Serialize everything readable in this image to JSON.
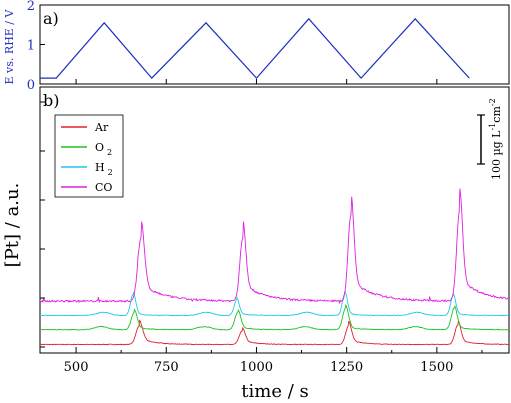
{
  "chart_data": [
    {
      "type": "line",
      "panel_label": "a)",
      "ylabel": "E vs. RHE / V",
      "ylim": [
        0,
        2
      ],
      "yticks": [
        "0",
        "1",
        "2"
      ],
      "xlim": [
        400,
        1700
      ],
      "color": "#1f2fbf",
      "series": [
        {
          "x": [
            400,
            445,
            578,
            710,
            860,
            1000,
            1145,
            1290,
            1440,
            1590
          ],
          "y": [
            0.15,
            0.15,
            1.55,
            0.15,
            1.55,
            0.15,
            1.65,
            0.15,
            1.65,
            0.15
          ]
        }
      ]
    },
    {
      "type": "line",
      "panel_label": "b)",
      "ylabel": "[Pt] / a.u.",
      "xlabel": "time / s",
      "xlim": [
        400,
        1700
      ],
      "xticks": [
        "500",
        "750",
        "1000",
        "1250",
        "1500"
      ],
      "scale_bar": {
        "text": "100 µg L",
        "exp1": "-1",
        "mid": "cm",
        "exp2": "-2"
      },
      "legend": {
        "placement": "top-left"
      },
      "series": [
        {
          "name": "Ar",
          "sub": "",
          "color": "#e0202a",
          "baseline": 0.05,
          "peaks": [
            {
              "x": 675,
              "h": 0.36,
              "w": 9,
              "tail": 0.12,
              "tw": 40
            },
            {
              "x": 960,
              "h": 0.26,
              "w": 8,
              "tail": 0.08,
              "tw": 35
            },
            {
              "x": 1255,
              "h": 0.36,
              "w": 8,
              "tail": 0.1,
              "tw": 35
            },
            {
              "x": 1558,
              "h": 0.38,
              "w": 8,
              "tail": 0.1,
              "tw": 35
            }
          ]
        },
        {
          "name": "O",
          "sub": "2",
          "color": "#20c020",
          "baseline": 0.34,
          "peaks": [
            {
              "x": 661,
              "h": 0.34,
              "w": 8,
              "tail": 0.06,
              "tw": 30
            },
            {
              "x": 948,
              "h": 0.34,
              "w": 8,
              "tail": 0.06,
              "tw": 30
            },
            {
              "x": 1247,
              "h": 0.42,
              "w": 8,
              "tail": 0.06,
              "tw": 30
            },
            {
              "x": 1548,
              "h": 0.42,
              "w": 8,
              "tail": 0.06,
              "tw": 30
            }
          ],
          "bumps": [
            570,
            855,
            1135,
            1440
          ]
        },
        {
          "name": "H",
          "sub": "2",
          "color": "#20c8e8",
          "baseline": 0.62,
          "peaks": [
            {
              "x": 658,
              "h": 0.42,
              "w": 7,
              "tail": 0.05,
              "tw": 25
            },
            {
              "x": 945,
              "h": 0.3,
              "w": 7,
              "tail": 0.05,
              "tw": 25
            },
            {
              "x": 1245,
              "h": 0.42,
              "w": 7,
              "tail": 0.05,
              "tw": 25
            },
            {
              "x": 1545,
              "h": 0.38,
              "w": 7,
              "tail": 0.05,
              "tw": 25
            }
          ],
          "bumps": [
            575,
            860,
            1140,
            1445
          ]
        },
        {
          "name": "CO",
          "sub": "",
          "color": "#e020e0",
          "baseline": 0.9,
          "peaks": [
            {
              "x": 680,
              "h": 1.25,
              "w": 9,
              "tail": 0.35,
              "tw": 60
            },
            {
              "x": 962,
              "h": 1.24,
              "w": 8,
              "tail": 0.35,
              "tw": 55
            },
            {
              "x": 1262,
              "h": 1.7,
              "w": 8,
              "tail": 0.42,
              "tw": 60
            },
            {
              "x": 1563,
              "h": 1.77,
              "w": 8,
              "tail": 0.45,
              "tw": 60
            }
          ]
        }
      ]
    }
  ]
}
